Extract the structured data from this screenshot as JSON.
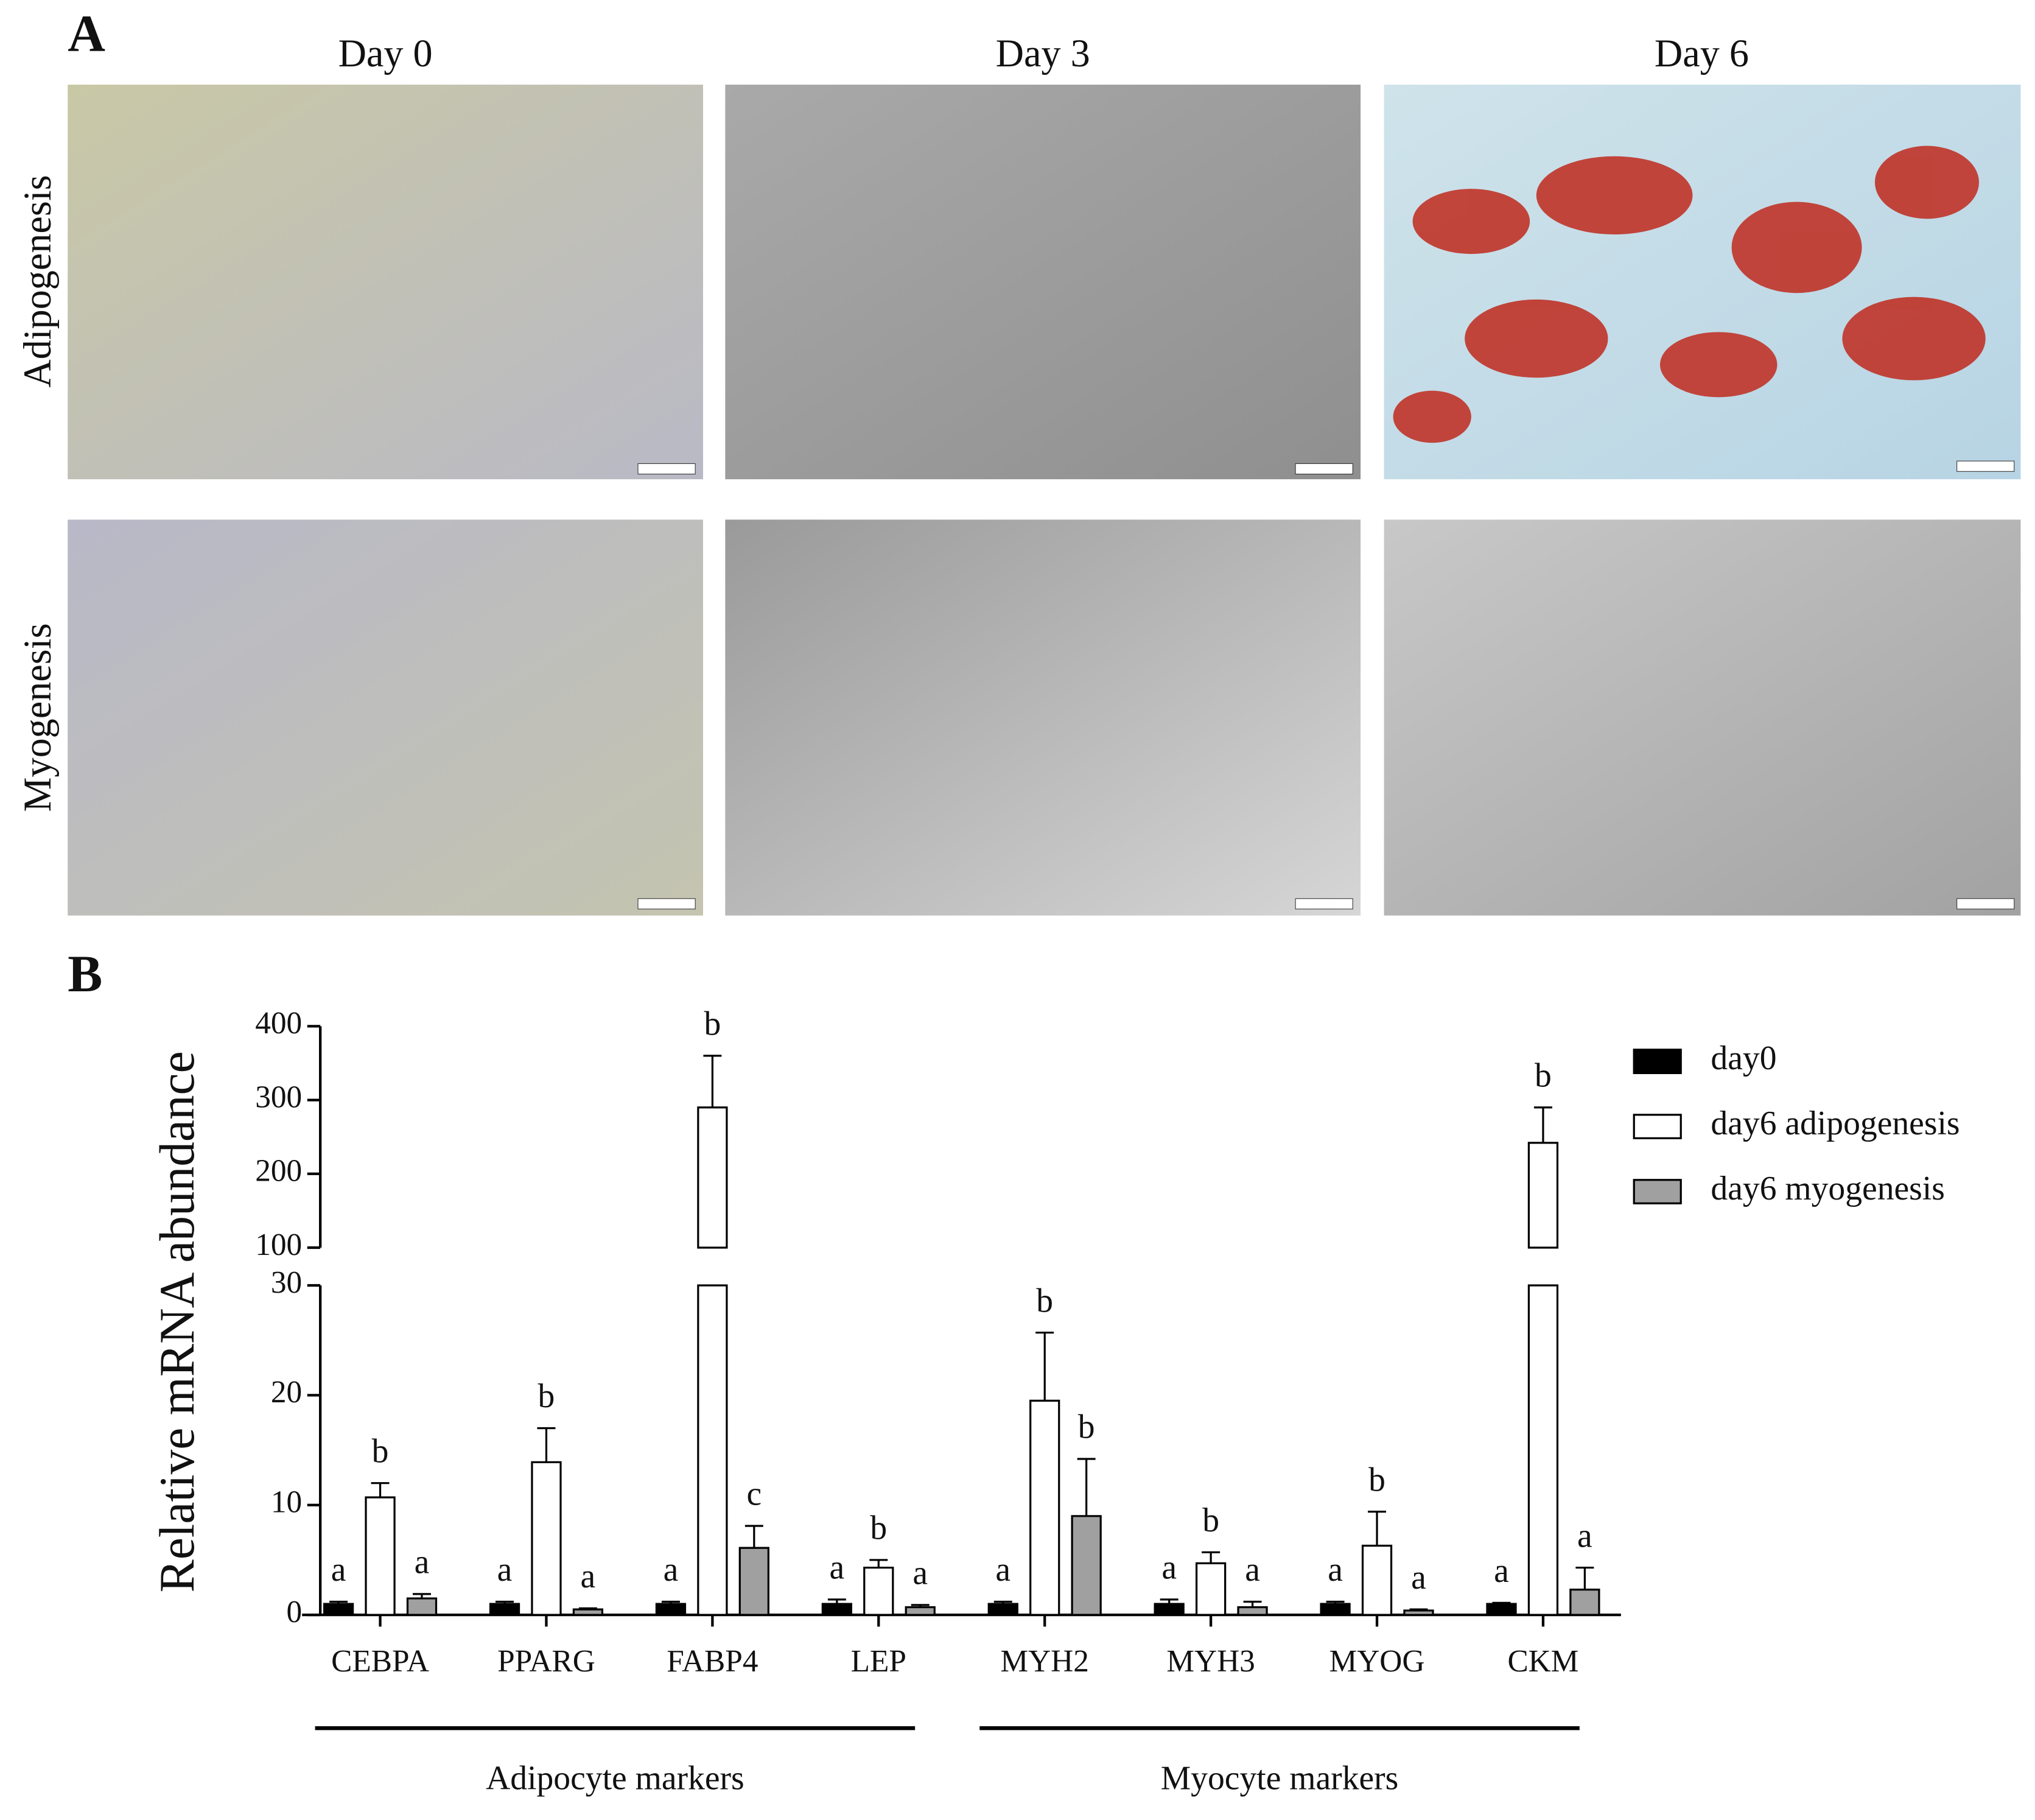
{
  "panel_a": {
    "label": "A",
    "columns": [
      "Day 0",
      "Day 3",
      "Day 6"
    ],
    "rows": [
      "Adipogenesis",
      "Myogenesis"
    ]
  },
  "chart_data": {
    "type": "bar",
    "panel_label": "B",
    "y_label": "Relative mRNA abundance",
    "categories": [
      "CEBPA",
      "PPARG",
      "FABP4",
      "LEP",
      "MYH2",
      "MYH3",
      "MYOG",
      "CKM"
    ],
    "ylim_segments": [
      [
        0,
        30
      ],
      [
        100,
        400
      ]
    ],
    "yticks": [
      0,
      10,
      20,
      30,
      100,
      200,
      300,
      400
    ],
    "series": [
      {
        "name": "day0",
        "color": "#000000",
        "values": [
          1,
          1,
          1,
          1,
          1,
          1,
          1,
          1
        ],
        "errors": [
          0.2,
          0.2,
          0.2,
          0.4,
          0.2,
          0.4,
          0.2,
          0.1
        ],
        "significance": [
          "a",
          "a",
          "a",
          "a",
          "a",
          "a",
          "a",
          "a"
        ]
      },
      {
        "name": "day6 adipogenesis",
        "color": "#ffffff",
        "values": [
          10.7,
          13.9,
          290,
          4.3,
          19.5,
          4.7,
          6.3,
          242
        ],
        "errors": [
          1.3,
          3.1,
          70,
          0.7,
          6.2,
          1.0,
          3.1,
          48
        ],
        "significance": [
          "b",
          "b",
          "b",
          "b",
          "b",
          "b",
          "b",
          "b"
        ]
      },
      {
        "name": "day6 myogenesis",
        "color": "#a0a0a0",
        "values": [
          1.5,
          0.5,
          6.1,
          0.7,
          9.0,
          0.7,
          0.4,
          2.3
        ],
        "errors": [
          0.4,
          0.1,
          2.0,
          0.2,
          5.2,
          0.5,
          0.1,
          2.0
        ],
        "significance": [
          "a",
          "a",
          "c",
          "a",
          "b",
          "a",
          "a",
          "a"
        ]
      }
    ],
    "groups": [
      {
        "label": "Adipocyte markers",
        "first": 0,
        "last": 3
      },
      {
        "label": "Myocyte markers",
        "first": 4,
        "last": 7
      }
    ],
    "legend": "upper right"
  }
}
